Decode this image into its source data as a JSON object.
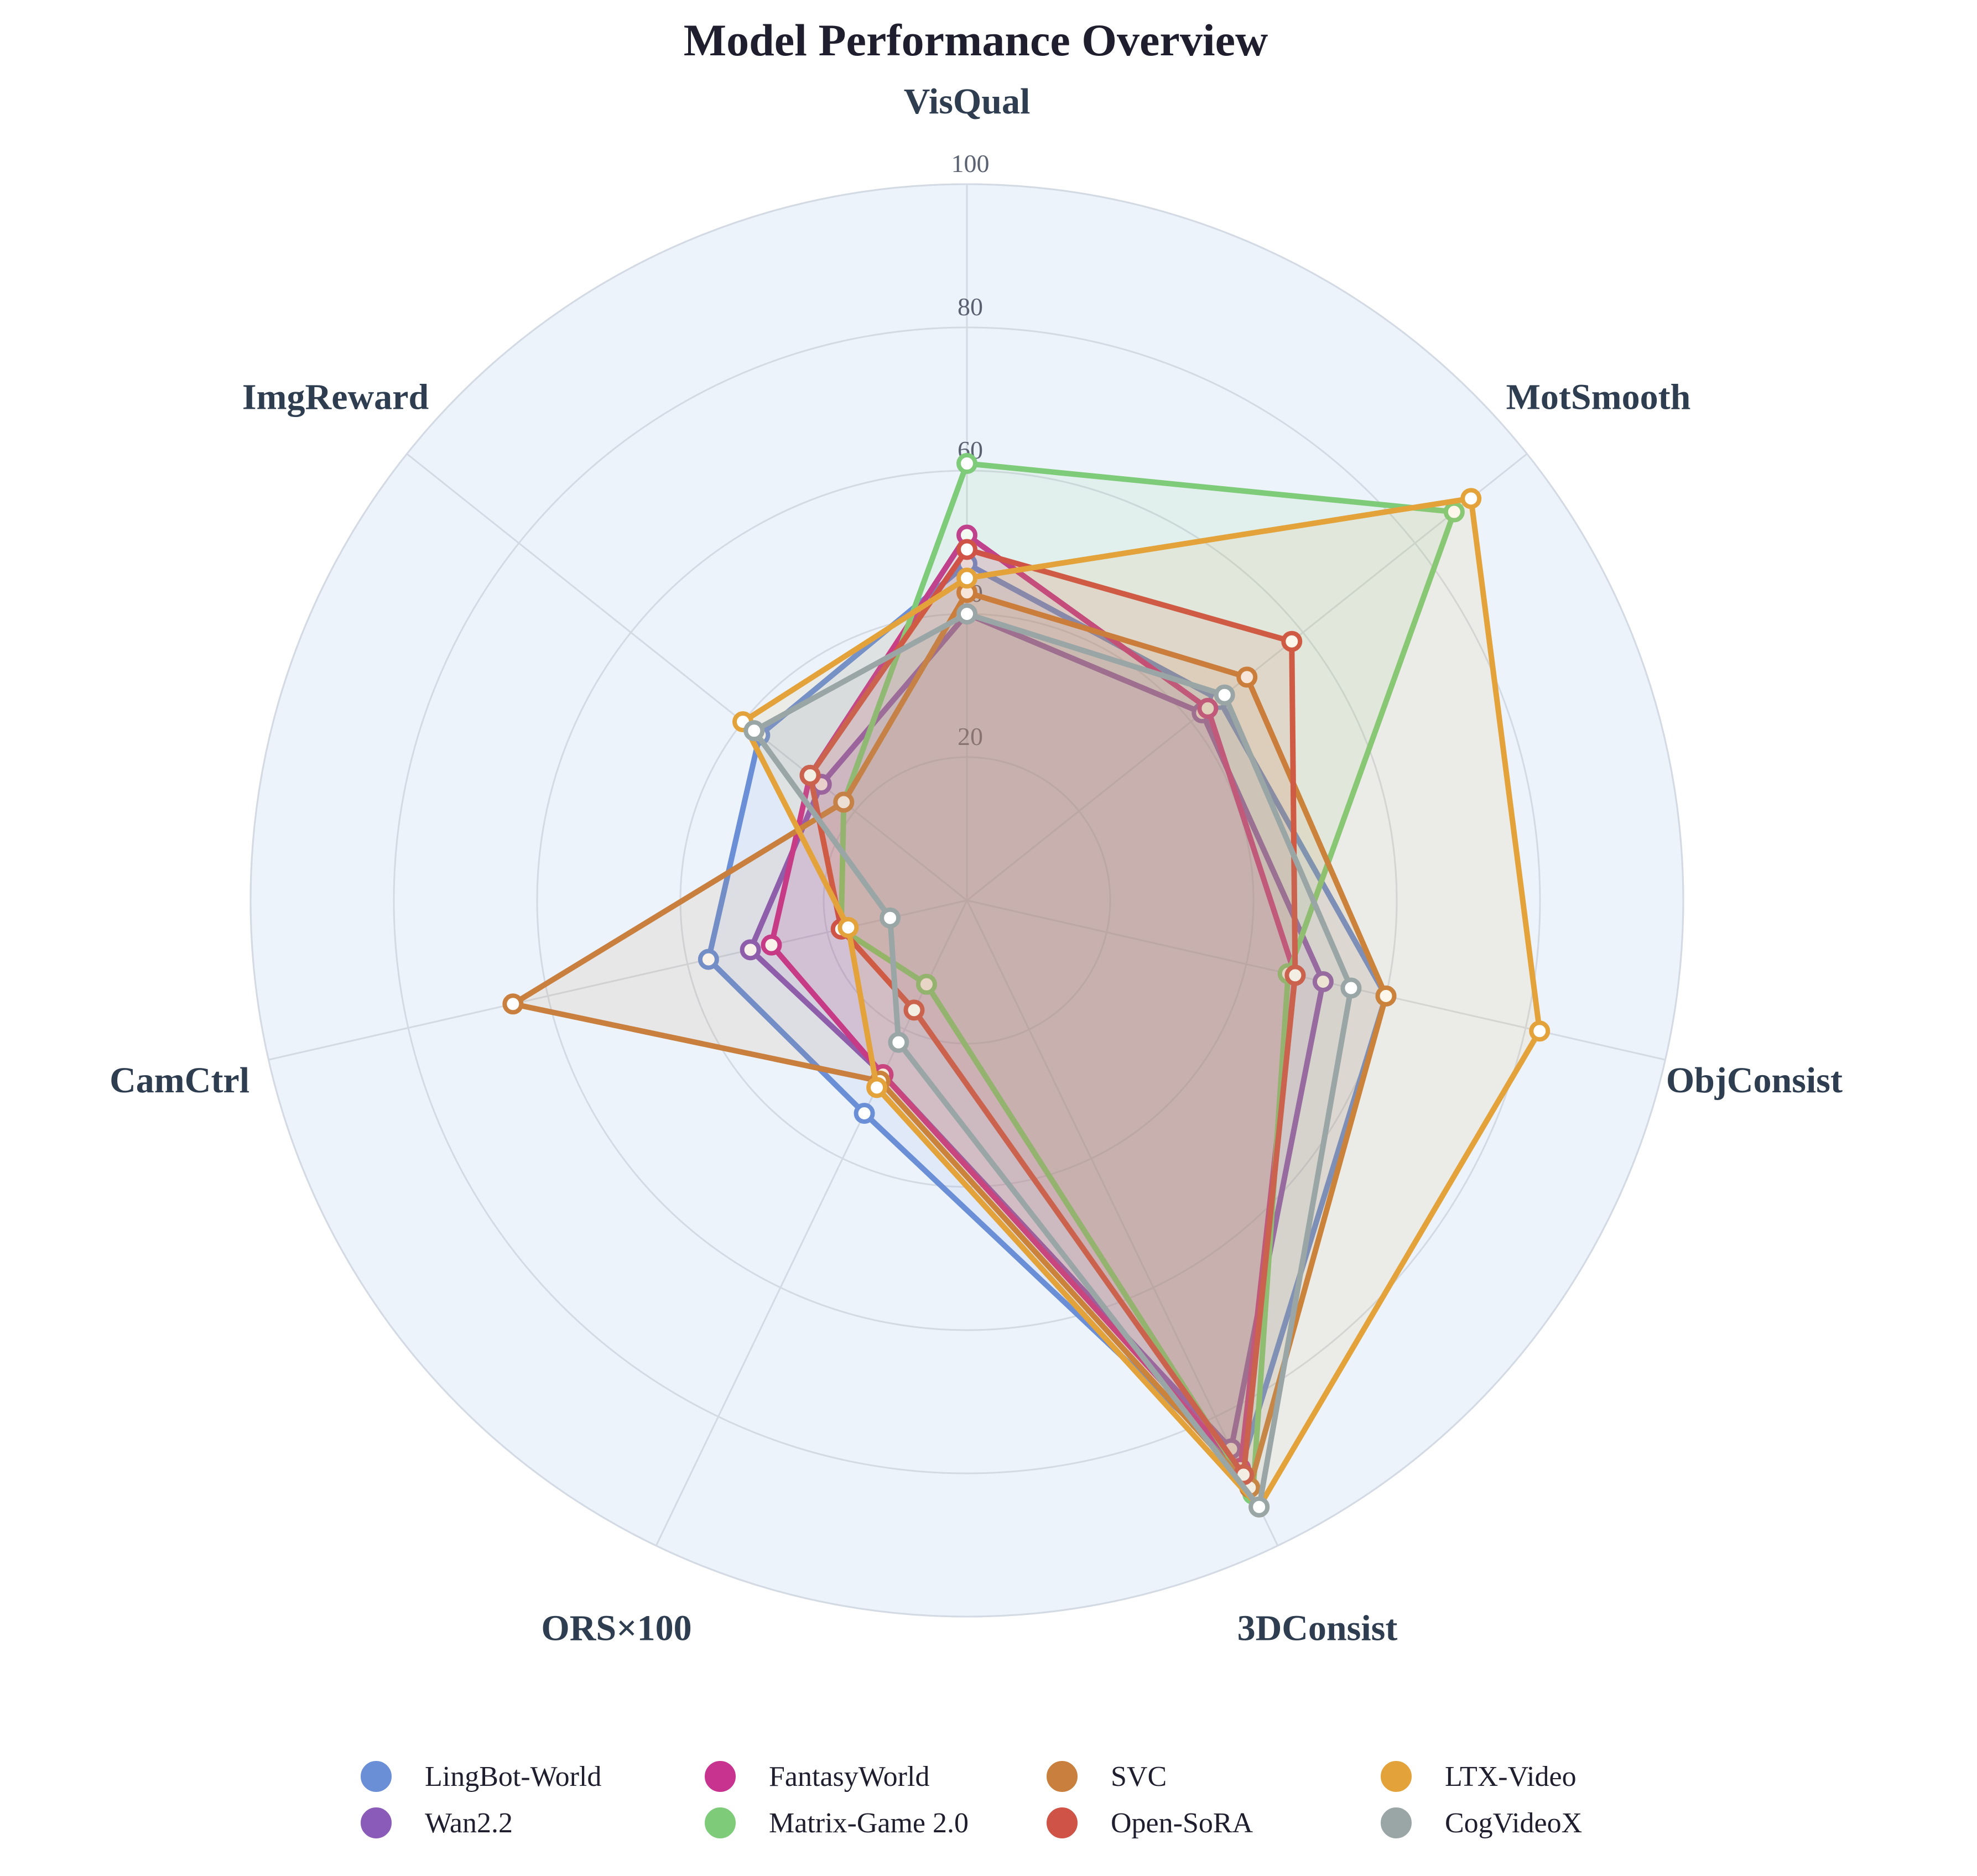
{
  "chart_data": {
    "type": "radar",
    "title": "Model Performance Overview",
    "axes": [
      "VisQual",
      "MotSmooth",
      "ObjConsist",
      "3DConsist",
      "ORS×100",
      "CamCtrl",
      "ImgReward"
    ],
    "radial_range": [
      0,
      100
    ],
    "radial_ticks": [
      20,
      40,
      60,
      80,
      100
    ],
    "tick_labels": [
      "20",
      "40",
      "60",
      "80",
      "100"
    ],
    "grid": true,
    "legend_position": "bottom",
    "series": [
      {
        "name": "LingBot-World",
        "color": "#6a8fd6",
        "values": [
          47,
          45,
          60,
          88,
          33,
          37,
          37
        ]
      },
      {
        "name": "Wan2.2",
        "color": "#8a5bb8",
        "values": [
          40,
          42,
          51,
          85,
          27,
          31,
          26
        ]
      },
      {
        "name": "FantasyWorld",
        "color": "#c8338f",
        "values": [
          51,
          43,
          47,
          88,
          27,
          28,
          28
        ]
      },
      {
        "name": "Matrix-Game 2.0",
        "color": "#7ecb7a",
        "values": [
          61,
          87,
          46,
          92,
          13,
          18,
          22
        ]
      },
      {
        "name": "SVC",
        "color": "#c97f3d",
        "values": [
          43,
          50,
          60,
          91,
          28,
          65,
          22
        ]
      },
      {
        "name": "Open-SoRA",
        "color": "#cf5346",
        "values": [
          49,
          58,
          47,
          89,
          17,
          18,
          28
        ]
      },
      {
        "name": "LTX-Video",
        "color": "#e3a33a",
        "values": [
          45,
          90,
          82,
          94,
          29,
          17,
          40
        ]
      },
      {
        "name": "CogVideoX",
        "color": "#9aa6a6",
        "values": [
          40,
          46,
          55,
          94,
          22,
          11,
          38
        ]
      }
    ]
  }
}
